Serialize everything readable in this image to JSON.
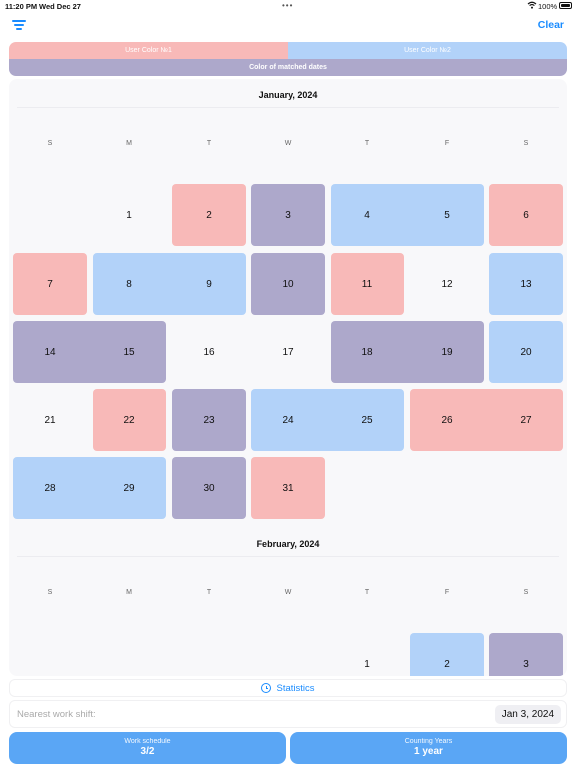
{
  "status_bar": {
    "time": "11:20 PM",
    "date": "Wed Dec 27",
    "dots": "•••",
    "battery": "100%"
  },
  "toolbar": {
    "filter_icon": "filter-lines-icon",
    "clear_label": "Clear"
  },
  "legend": {
    "user1_label": "User Color №1",
    "user2_label": "User Color №2",
    "matched_label": "Color of matched dates",
    "colors": {
      "user1": "#f8b9b8",
      "user2": "#b2d2f9",
      "matched": "#ada8cb"
    }
  },
  "calendar": {
    "weekdays": [
      "S",
      "M",
      "T",
      "W",
      "T",
      "F",
      "S"
    ],
    "months": [
      {
        "title": "January, 2024",
        "rows": [
          [
            null,
            {
              "d": "1",
              "s": null
            },
            {
              "d": "2",
              "s": "u1"
            },
            {
              "d": "3",
              "s": "m"
            },
            {
              "d": "4",
              "s": "u2"
            },
            {
              "d": "5",
              "s": "u2"
            },
            {
              "d": "6",
              "s": "u1"
            }
          ],
          [
            {
              "d": "7",
              "s": "u1"
            },
            {
              "d": "8",
              "s": "u2"
            },
            {
              "d": "9",
              "s": "u2"
            },
            {
              "d": "10",
              "s": "m"
            },
            {
              "d": "11",
              "s": "u1"
            },
            {
              "d": "12",
              "s": null
            },
            {
              "d": "13",
              "s": "u2"
            }
          ],
          [
            {
              "d": "14",
              "s": "m"
            },
            {
              "d": "15",
              "s": "m"
            },
            {
              "d": "16",
              "s": null
            },
            {
              "d": "17",
              "s": null
            },
            {
              "d": "18",
              "s": "m"
            },
            {
              "d": "19",
              "s": "m"
            },
            {
              "d": "20",
              "s": "u2"
            }
          ],
          [
            {
              "d": "21",
              "s": null
            },
            {
              "d": "22",
              "s": "u1"
            },
            {
              "d": "23",
              "s": "m"
            },
            {
              "d": "24",
              "s": "u2"
            },
            {
              "d": "25",
              "s": "u2"
            },
            {
              "d": "26",
              "s": "u1"
            },
            {
              "d": "27",
              "s": "u1"
            }
          ],
          [
            {
              "d": "28",
              "s": "u2"
            },
            {
              "d": "29",
              "s": "u2"
            },
            {
              "d": "30",
              "s": "m"
            },
            {
              "d": "31",
              "s": "u1"
            },
            null,
            null,
            null
          ]
        ]
      },
      {
        "title": "February, 2024",
        "rows": [
          [
            null,
            null,
            null,
            null,
            {
              "d": "1",
              "s": null
            },
            {
              "d": "2",
              "s": "u2"
            },
            {
              "d": "3",
              "s": "m"
            }
          ]
        ]
      }
    ]
  },
  "statistics": {
    "icon": "clock-icon",
    "label": "Statistics"
  },
  "nearest_shift": {
    "label": "Nearest work shift:",
    "value": "Jan 3, 2024"
  },
  "work_schedule": {
    "title": "Work schedule",
    "value": "3/2"
  },
  "counting_years": {
    "title": "Counting Years",
    "value": "1 year"
  }
}
